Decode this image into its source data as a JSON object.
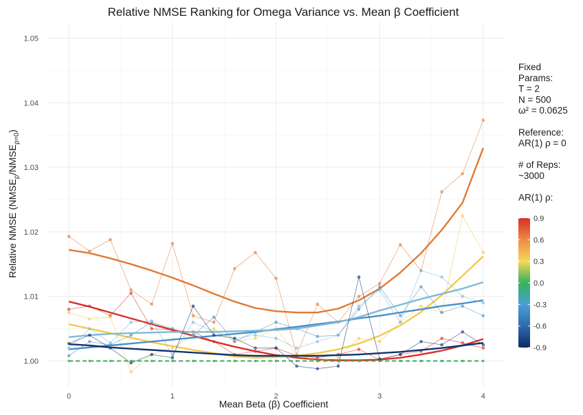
{
  "chart_data": {
    "type": "line",
    "title": "Relative NMSE Ranking for Omega Variance vs. Mean β Coefficient",
    "xlabel": "Mean Beta (β) Coefficient",
    "ylabel_parts": [
      "Relative NMSE (NMSE",
      "ρ",
      "/NMSE",
      "ρ=0",
      ")"
    ],
    "xlim": [
      -0.2,
      4.2
    ],
    "ylim": [
      0.996,
      1.0525
    ],
    "x_ticks": [
      0,
      1,
      2,
      3,
      4
    ],
    "x_tick_labels": [
      "0",
      "1",
      "2",
      "3",
      "4"
    ],
    "y_ticks": [
      1.0,
      1.01,
      1.02,
      1.03,
      1.04,
      1.05
    ],
    "y_tick_labels": [
      "1.00",
      "1.01",
      "1.02",
      "1.03",
      "1.04",
      "1.05"
    ],
    "grid": true,
    "x": [
      0,
      0.2,
      0.4,
      0.6,
      0.8,
      1.0,
      1.2,
      1.4,
      1.6,
      1.8,
      2.0,
      2.2,
      2.4,
      2.6,
      2.8,
      3.0,
      3.2,
      3.4,
      3.6,
      3.8,
      4.0
    ],
    "series": [
      {
        "rho": 0.6,
        "color": "#e07a32",
        "values": [
          1.0193,
          1.017,
          1.0188,
          1.011,
          1.0088,
          1.0182,
          1.007,
          1.006,
          1.0143,
          1.0168,
          1.0128,
          1.001,
          1.0088,
          1.006,
          1.01,
          1.012,
          1.018,
          1.014,
          1.0262,
          1.029,
          1.0373
        ],
        "trend": [
          1.0172,
          1.0167,
          1.0159,
          1.015,
          1.014,
          1.0129,
          1.0117,
          1.0104,
          1.0092,
          1.0082,
          1.0077,
          1.0075,
          1.0075,
          1.0081,
          1.0094,
          1.0112,
          1.0137,
          1.0167,
          1.0203,
          1.0245,
          1.033
        ]
      },
      {
        "rho": 0.9,
        "color": "#d62f27",
        "values": [
          1.008,
          1.0085,
          1.007,
          1.0105,
          1.005,
          1.0048,
          1.0045,
          1.003,
          1.001,
          1.0015,
          1.002,
          1.0008,
          1.0005,
          1.001,
          1.0018,
          1.0002,
          1.001,
          1.0015,
          1.0035,
          1.0028,
          1.002
        ],
        "trend": [
          1.0092,
          1.0084,
          1.0075,
          1.0066,
          1.0057,
          1.0048,
          1.0039,
          1.003,
          1.0022,
          1.0015,
          1.0009,
          1.0005,
          1.0002,
          1.0001,
          1.0001,
          1.0002,
          1.0005,
          1.001,
          1.0016,
          1.0024,
          1.0034
        ]
      },
      {
        "rho": 0.3,
        "color": "#f2c94c",
        "values": [
          1.0075,
          1.0065,
          1.0068,
          0.9983,
          1.001,
          1.002,
          1.004,
          1.005,
          1.003,
          1.0035,
          1.005,
          1.001,
          1.0,
          1.0005,
          1.0035,
          1.003,
          1.006,
          1.0085,
          1.0075,
          1.0225,
          1.0168
        ],
        "trend": [
          1.0057,
          1.005,
          1.0043,
          1.0036,
          1.0029,
          1.0023,
          1.0017,
          1.0012,
          1.0007,
          1.0005,
          1.0006,
          1.0008,
          1.0012,
          1.0018,
          1.0027,
          1.0039,
          1.0055,
          1.0076,
          1.0102,
          1.0132,
          1.0162
        ]
      },
      {
        "rho": -0.6,
        "color": "#4a90c8",
        "values": [
          1.0008,
          1.003,
          1.0025,
          1.004,
          1.006,
          1.005,
          1.004,
          1.0068,
          1.003,
          1.0045,
          1.006,
          1.005,
          1.0038,
          1.004,
          1.008,
          1.0115,
          1.007,
          1.0115,
          1.0075,
          1.0085,
          1.007
        ],
        "trend": [
          1.0018,
          1.0021,
          1.0024,
          1.0027,
          1.003,
          1.0033,
          1.0036,
          1.0039,
          1.0042,
          1.0045,
          1.0049,
          1.0053,
          1.0057,
          1.0061,
          1.0066,
          1.007,
          1.0075,
          1.008,
          1.0085,
          1.0089,
          1.0094
        ]
      },
      {
        "rho": -0.3,
        "color": "#7fb9d8",
        "values": [
          1.002,
          1.005,
          1.0028,
          1.006,
          1.0062,
          1.001,
          1.006,
          1.0045,
          1.0035,
          1.004,
          1.0035,
          1.002,
          1.003,
          1.004,
          1.0085,
          1.011,
          1.006,
          1.014,
          1.013,
          1.01,
          1.009
        ],
        "trend": [
          1.0037,
          1.004,
          1.0042,
          1.0043,
          1.0044,
          1.0045,
          1.0045,
          1.0045,
          1.0046,
          1.0047,
          1.0048,
          1.005,
          1.0055,
          1.006,
          1.0068,
          1.0078,
          1.0087,
          1.0096,
          1.0104,
          1.0112,
          1.0122
        ]
      },
      {
        "rho": -0.9,
        "color": "#12336b",
        "values": [
          1.0027,
          1.004,
          1.002,
          0.9997,
          1.001,
          1.0005,
          1.0085,
          1.004,
          1.0035,
          1.002,
          1.002,
          0.9992,
          0.9988,
          0.9992,
          1.013,
          1.0003,
          1.001,
          1.003,
          1.0025,
          1.0045,
          1.0025
        ],
        "trend": [
          1.0026,
          1.0024,
          1.0021,
          1.0019,
          1.0017,
          1.0015,
          1.0013,
          1.0011,
          1.0009,
          1.0008,
          1.0008,
          1.0008,
          1.0008,
          1.0009,
          1.001,
          1.0012,
          1.0014,
          1.0017,
          1.002,
          1.0024,
          1.0028
        ]
      },
      {
        "rho": 0.0,
        "color": "#3aaa5a",
        "dashed": true,
        "values": [
          1.0,
          1.0,
          1.0,
          1.0,
          1.0,
          1.0,
          1.0,
          1.0,
          1.0,
          1.0,
          1.0,
          1.0,
          1.0,
          1.0,
          1.0,
          1.0,
          1.0,
          1.0,
          1.0,
          1.0,
          1.0
        ],
        "trend": [
          1.0,
          1.0,
          1.0,
          1.0,
          1.0,
          1.0,
          1.0,
          1.0,
          1.0,
          1.0,
          1.0,
          1.0,
          1.0,
          1.0,
          1.0,
          1.0,
          1.0,
          1.0,
          1.0,
          1.0,
          1.0
        ]
      }
    ],
    "legend": {
      "placement": "right",
      "text_lines": [
        "Fixed",
        "Params:",
        "T = 2",
        "N = 500",
        "ω² = 0.0625",
        "",
        "Reference:",
        "AR(1) ρ = 0",
        "",
        "# of Reps:",
        "~3000",
        "",
        "AR(1) ρ:"
      ],
      "colorbar": {
        "min": -0.9,
        "max": 0.9,
        "ticks": [
          0.9,
          0.6,
          0.3,
          0.0,
          -0.3,
          -0.6,
          -0.9
        ],
        "tick_labels": [
          "0.9",
          "0.6",
          "0.3",
          "0.0",
          "-0.3",
          "-0.6",
          "-0.9"
        ],
        "colors": [
          "#d62f27",
          "#f08a45",
          "#f5d85a",
          "#35b35c",
          "#4a9fd6",
          "#2d6aad",
          "#0f2b66"
        ]
      }
    }
  }
}
